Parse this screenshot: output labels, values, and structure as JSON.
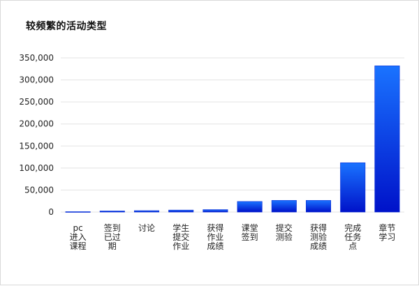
{
  "chart_data": {
    "type": "bar",
    "title": "较频繁的活动类型",
    "categories": [
      [
        "pc",
        "进入",
        "课程"
      ],
      [
        "签到",
        "已过",
        "期"
      ],
      [
        "讨论"
      ],
      [
        "学生",
        "提交",
        "作业"
      ],
      [
        "获得",
        "作业",
        "成绩"
      ],
      [
        "课堂",
        "签到"
      ],
      [
        "提交",
        "测验"
      ],
      [
        "获得",
        "测验",
        "成绩"
      ],
      [
        "完成",
        "任务",
        "点"
      ],
      [
        "章节",
        "学习"
      ]
    ],
    "values": [
      900,
      2500,
      3200,
      4500,
      5500,
      24000,
      26500,
      26500,
      112000,
      332000
    ],
    "ylim": [
      0,
      350000
    ],
    "yticks": [
      "0",
      "50,000",
      "100,000",
      "150,000",
      "200,000",
      "250,000",
      "300,000",
      "350,000"
    ],
    "grid": true,
    "colors": {
      "bar_top": "#1a73ff",
      "bar_bottom": "#0012c9",
      "bar_stroke": "#0a2bd6"
    }
  }
}
